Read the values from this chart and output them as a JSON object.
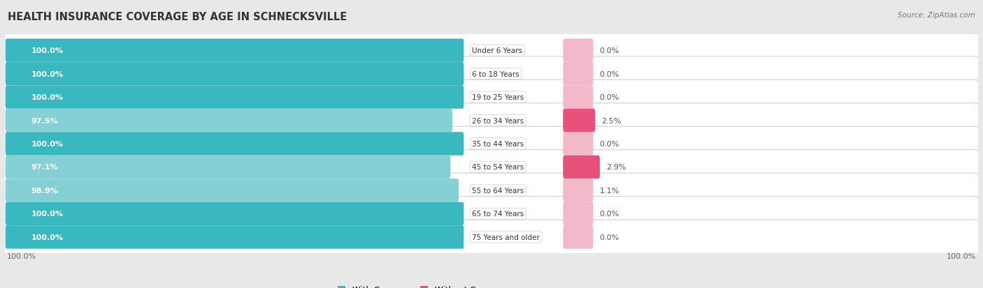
{
  "title": "HEALTH INSURANCE COVERAGE BY AGE IN SCHNECKSVILLE",
  "source": "Source: ZipAtlas.com",
  "categories": [
    "Under 6 Years",
    "6 to 18 Years",
    "19 to 25 Years",
    "26 to 34 Years",
    "35 to 44 Years",
    "45 to 54 Years",
    "55 to 64 Years",
    "65 to 74 Years",
    "75 Years and older"
  ],
  "with_coverage": [
    100.0,
    100.0,
    100.0,
    97.5,
    100.0,
    97.1,
    98.9,
    100.0,
    100.0
  ],
  "without_coverage": [
    0.0,
    0.0,
    0.0,
    2.5,
    0.0,
    2.9,
    1.1,
    0.0,
    0.0
  ],
  "color_with_full": "#3ab8c0",
  "color_with_partial": "#85d0d5",
  "color_without_high": "#e8527a",
  "color_without_low": "#f4b8cb",
  "bg_color": "#e8e8e8",
  "row_bg": "#f5f5f5",
  "row_edge": "#d0d0d0",
  "title_fontsize": 10.5,
  "label_fontsize": 8.0,
  "tick_fontsize": 8.0,
  "legend_fontsize": 8.5,
  "source_fontsize": 7.5
}
